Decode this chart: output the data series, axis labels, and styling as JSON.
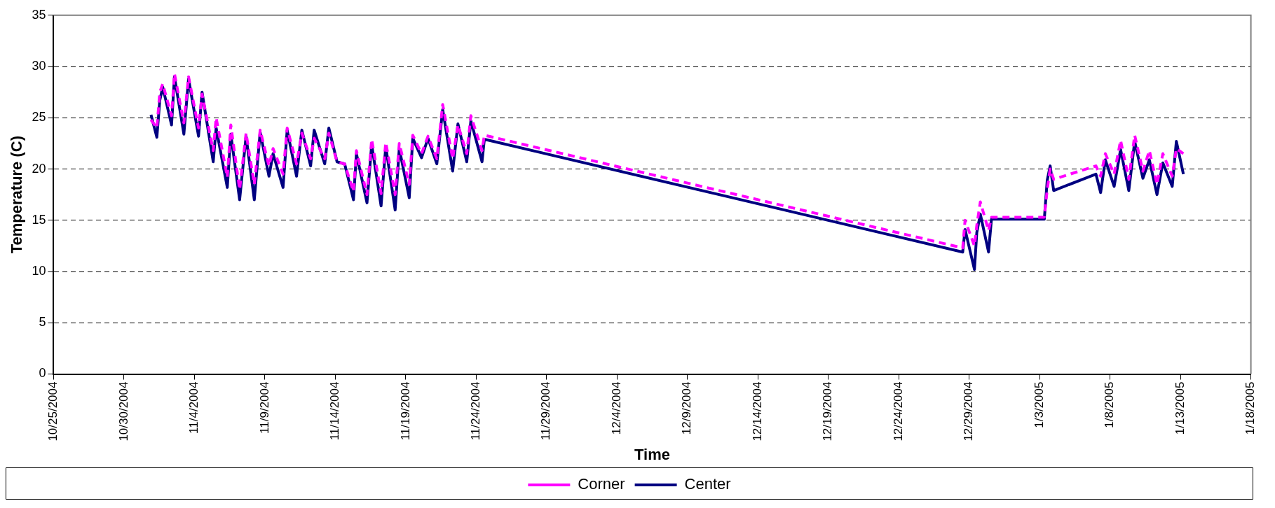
{
  "chart_data": {
    "type": "line",
    "xlabel": "Time",
    "ylabel": "Temperature (C)",
    "x": [
      "2004-10-31T22:00",
      "2004-11-01T08:00",
      "2004-11-01T13:00",
      "2004-11-01T18:00",
      "2004-11-02T09:00",
      "2004-11-02T14:00",
      "2004-11-03T06:00",
      "2004-11-03T14:00",
      "2004-11-04T07:00",
      "2004-11-04T13:00",
      "2004-11-05T08:00",
      "2004-11-05T13:00",
      "2004-11-06T08:00",
      "2004-11-06T14:00",
      "2004-11-07T05:00",
      "2004-11-07T16:00",
      "2004-11-08T06:00",
      "2004-11-08T16:00",
      "2004-11-09T07:00",
      "2004-11-09T14:00",
      "2004-11-10T07:00",
      "2004-11-10T14:00",
      "2004-11-11T06:00",
      "2004-11-11T15:00",
      "2004-11-12T06:00",
      "2004-11-12T12:00",
      "2004-11-13T06:00",
      "2004-11-13T13:00",
      "2004-11-14T03:00",
      "2004-11-14T16:00",
      "2004-11-15T07:00",
      "2004-11-15T12:00",
      "2004-11-16T06:00",
      "2004-11-16T14:00",
      "2004-11-17T06:00",
      "2004-11-17T14:00",
      "2004-11-18T06:00",
      "2004-11-18T13:00",
      "2004-11-19T06:00",
      "2004-11-19T12:00",
      "2004-11-20T03:00",
      "2004-11-20T14:00",
      "2004-11-21T05:00",
      "2004-11-21T15:00",
      "2004-11-22T08:00",
      "2004-11-22T17:00",
      "2004-11-23T08:00",
      "2004-11-23T15:00",
      "2004-11-24T10:00",
      "2004-11-24T14:00",
      "2004-12-28T13:00",
      "2004-12-28T17:00",
      "2004-12-29T09:00",
      "2004-12-29T13:00",
      "2004-12-29T19:00",
      "2004-12-30T09:00",
      "2004-12-30T14:00",
      "2005-01-03T08:00",
      "2005-01-03T13:00",
      "2005-01-03T18:00",
      "2005-01-04T00:00",
      "2005-01-07T00:00",
      "2005-01-07T08:00",
      "2005-01-07T16:00",
      "2005-01-08T07:00",
      "2005-01-08T18:00",
      "2005-01-09T08:00",
      "2005-01-09T18:00",
      "2005-01-10T08:00",
      "2005-01-10T19:00",
      "2005-01-11T08:00",
      "2005-01-11T18:00",
      "2005-01-12T10:00",
      "2005-01-12T17:00",
      "2005-01-13T05:00"
    ],
    "series": [
      {
        "name": "Center",
        "color": "#000080",
        "line_style": "solid",
        "values": [
          25.3,
          23.1,
          26.7,
          28.0,
          24.3,
          29.0,
          23.4,
          28.8,
          23.2,
          27.5,
          20.7,
          24.0,
          18.2,
          23.4,
          17.0,
          23.2,
          17.0,
          23.6,
          19.3,
          21.5,
          18.2,
          23.8,
          19.3,
          23.8,
          20.3,
          23.8,
          20.5,
          24.0,
          20.7,
          20.5,
          17.0,
          21.5,
          16.7,
          22.4,
          16.4,
          22.2,
          16.0,
          22.0,
          17.2,
          23.0,
          21.1,
          23.0,
          20.5,
          25.8,
          19.8,
          24.4,
          20.7,
          24.7,
          20.7,
          22.9,
          11.9,
          14.1,
          10.2,
          13.8,
          15.6,
          11.9,
          15.1,
          15.1,
          18.9,
          20.3,
          17.9,
          19.5,
          17.7,
          20.9,
          18.3,
          21.9,
          17.9,
          22.7,
          19.1,
          20.9,
          17.5,
          20.6,
          18.3,
          22.7,
          19.5
        ]
      },
      {
        "name": "Corner",
        "color": "#ff00ff",
        "line_style": "dashed",
        "values": [
          24.8,
          24.0,
          27.5,
          28.3,
          25.2,
          29.3,
          24.5,
          29.0,
          24.0,
          27.3,
          21.8,
          25.0,
          19.2,
          24.3,
          18.0,
          23.5,
          18.5,
          23.8,
          20.3,
          22.0,
          19.5,
          24.0,
          20.5,
          23.5,
          21.0,
          23.0,
          21.0,
          23.5,
          20.7,
          20.5,
          17.8,
          21.8,
          17.5,
          22.9,
          17.6,
          22.6,
          17.5,
          22.5,
          18.5,
          23.3,
          21.5,
          23.2,
          21.0,
          26.3,
          21.0,
          24.3,
          21.5,
          25.2,
          21.8,
          23.3,
          12.3,
          15.0,
          12.5,
          14.5,
          16.8,
          14.0,
          15.3,
          15.3,
          18.0,
          20.0,
          19.0,
          20.3,
          19.3,
          21.5,
          19.5,
          22.8,
          19.0,
          23.3,
          19.8,
          21.8,
          18.5,
          21.5,
          19.3,
          22.0,
          21.5
        ]
      }
    ],
    "xlim": [
      "2004-10-25",
      "2005-01-18"
    ],
    "xticks": [
      {
        "value": "2004-10-25",
        "label": "10/25/2004"
      },
      {
        "value": "2004-10-30",
        "label": "10/30/2004"
      },
      {
        "value": "2004-11-04",
        "label": "11/4/2004"
      },
      {
        "value": "2004-11-09",
        "label": "11/9/2004"
      },
      {
        "value": "2004-11-14",
        "label": "11/14/2004"
      },
      {
        "value": "2004-11-19",
        "label": "11/19/2004"
      },
      {
        "value": "2004-11-24",
        "label": "11/24/2004"
      },
      {
        "value": "2004-11-29",
        "label": "11/29/2004"
      },
      {
        "value": "2004-12-04",
        "label": "12/4/2004"
      },
      {
        "value": "2004-12-09",
        "label": "12/9/2004"
      },
      {
        "value": "2004-12-14",
        "label": "12/14/2004"
      },
      {
        "value": "2004-12-19",
        "label": "12/19/2004"
      },
      {
        "value": "2004-12-24",
        "label": "12/24/2004"
      },
      {
        "value": "2004-12-29",
        "label": "12/29/2004"
      },
      {
        "value": "2005-01-03",
        "label": "1/3/2005"
      },
      {
        "value": "2005-01-08",
        "label": "1/8/2005"
      },
      {
        "value": "2005-01-13",
        "label": "1/13/2005"
      },
      {
        "value": "2005-01-18",
        "label": "1/18/2005"
      }
    ],
    "ylim": [
      0,
      35
    ],
    "yticks": [
      0,
      5,
      10,
      15,
      20,
      25,
      30,
      35
    ],
    "grid": "y",
    "legend": "bottom",
    "marker": "none"
  }
}
